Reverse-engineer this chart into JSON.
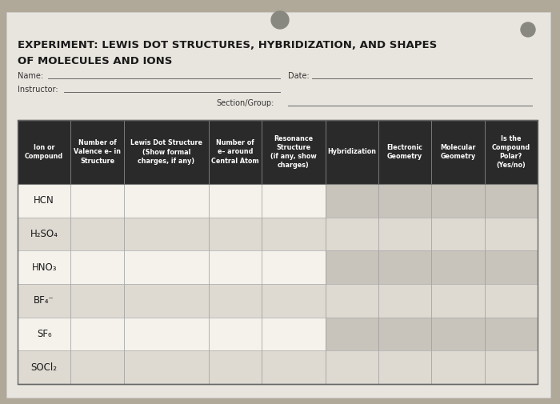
{
  "title_line1": "EXPERIMENT: LEWIS DOT STRUCTURES, HYBRIDIZATION, AND SHAPES",
  "title_line2": "OF MOLECULES AND IONS",
  "bg_outer": "#b0a898",
  "bg_paper": "#e8e5de",
  "header_bg": "#2a2a2a",
  "header_text_color": "#ffffff",
  "col_headers": [
    "Ion or\nCompound",
    "Number of\nValence e– in\nStructure",
    "Lewis Dot Structure\n(Show formal\ncharges, if any)",
    "Number of\ne– around\nCentral Atom",
    "Resonance\nStructure\n(if any, show\ncharges)",
    "Hybridization",
    "Electronic\nGeometry",
    "Molecular\nGeometry",
    "Is the\nCompound\nPolar?\n(Yes/no)"
  ],
  "row_labels": [
    "HCN",
    "H₂SO₄",
    "HNO₃",
    "BF₄⁻",
    "SF₆",
    "SOCl₂"
  ],
  "col_widths_rel": [
    1.0,
    1.0,
    1.6,
    1.0,
    1.2,
    1.0,
    1.0,
    1.0,
    1.0
  ],
  "header_fontsize": 5.8,
  "row_fontsize": 8.5,
  "label_fontsize": 7.5,
  "row_cell_colors": [
    [
      "#f5f2ec",
      "#f5f2ec",
      "#f5f2ec",
      "#f5f2ec",
      "#f5f2ec",
      "#c8c4bc",
      "#c8c4bc",
      "#c8c4bc",
      "#c8c4bc"
    ],
    [
      "#dedad2",
      "#dedad2",
      "#dedad2",
      "#dedad2",
      "#dedad2",
      "#dedad2",
      "#dedad2",
      "#dedad2",
      "#dedad2"
    ],
    [
      "#f5f2ec",
      "#f5f2ec",
      "#f5f2ec",
      "#f5f2ec",
      "#f5f2ec",
      "#c8c4bc",
      "#c8c4bc",
      "#c8c4bc",
      "#c8c4bc"
    ],
    [
      "#dedad2",
      "#dedad2",
      "#dedad2",
      "#dedad2",
      "#dedad2",
      "#dedad2",
      "#dedad2",
      "#dedad2",
      "#dedad2"
    ],
    [
      "#f5f2ec",
      "#f5f2ec",
      "#f5f2ec",
      "#f5f2ec",
      "#f5f2ec",
      "#c8c4bc",
      "#c8c4bc",
      "#c8c4bc",
      "#c8c4bc"
    ],
    [
      "#dedad2",
      "#dedad2",
      "#dedad2",
      "#dedad2",
      "#dedad2",
      "#dedad2",
      "#dedad2",
      "#dedad2",
      "#dedad2"
    ]
  ]
}
